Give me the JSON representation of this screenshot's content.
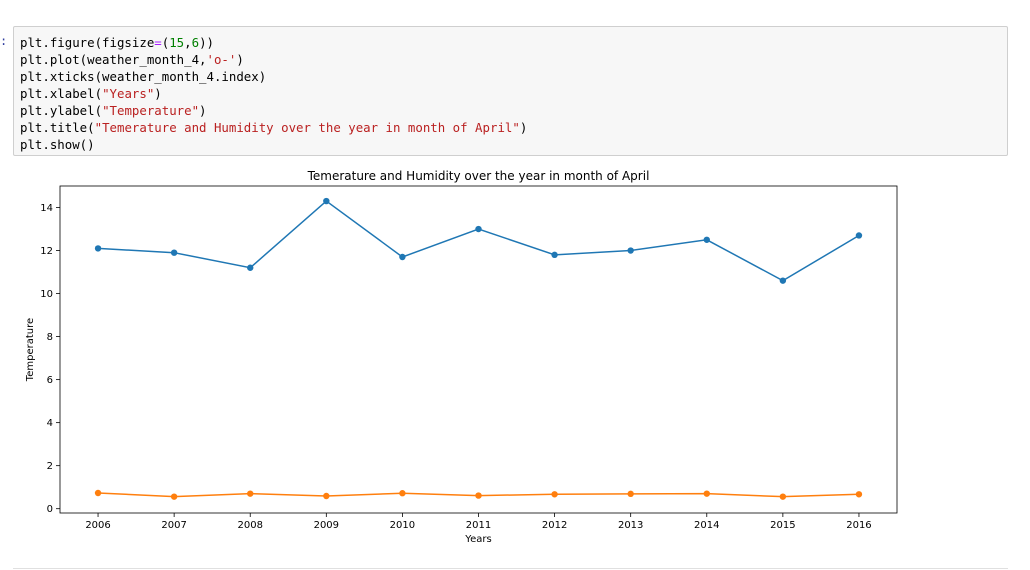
{
  "cell": {
    "prompt": ":",
    "lines": [
      [
        {
          "t": "plt.figure(figsize"
        },
        {
          "t": "=",
          "c": "op"
        },
        {
          "t": "("
        },
        {
          "t": "15",
          "c": "num"
        },
        {
          "t": ","
        },
        {
          "t": "6",
          "c": "num"
        },
        {
          "t": "))"
        }
      ],
      [
        {
          "t": "plt.plot(weather_month_4,"
        },
        {
          "t": "'o-'",
          "c": "str"
        },
        {
          "t": ")"
        }
      ],
      [
        {
          "t": "plt.xticks(weather_month_4.index)"
        }
      ],
      [
        {
          "t": "plt.xlabel("
        },
        {
          "t": "\"Years\"",
          "c": "str"
        },
        {
          "t": ")"
        }
      ],
      [
        {
          "t": "plt.ylabel("
        },
        {
          "t": "\"Temperature\"",
          "c": "str"
        },
        {
          "t": ")"
        }
      ],
      [
        {
          "t": "plt.title("
        },
        {
          "t": "\"Temerature and Humidity over the year in month of April\"",
          "c": "str"
        },
        {
          "t": ")"
        }
      ],
      [
        {
          "t": "plt.show()"
        }
      ]
    ]
  },
  "chart_data": {
    "type": "line",
    "title": "Temerature and Humidity over the year in month of April",
    "xlabel": "Years",
    "ylabel": "Temperature",
    "categories": [
      2006,
      2007,
      2008,
      2009,
      2010,
      2011,
      2012,
      2013,
      2014,
      2015,
      2016
    ],
    "x_ticks": [
      "2006",
      "2007",
      "2008",
      "2009",
      "2010",
      "2011",
      "2012",
      "2013",
      "2014",
      "2015",
      "2016"
    ],
    "y_ticks": [
      "0",
      "2",
      "4",
      "6",
      "8",
      "10",
      "12",
      "14"
    ],
    "ylim": [
      -0.2,
      15.0
    ],
    "xlim": [
      2005.5,
      2016.5
    ],
    "grid": false,
    "series": [
      {
        "name": "Temperature",
        "color": "#1f77b4",
        "values": [
          12.1,
          11.9,
          11.2,
          14.3,
          11.7,
          13.0,
          11.8,
          12.0,
          12.5,
          10.6,
          12.7
        ]
      },
      {
        "name": "Humidity",
        "color": "#ff7f0e",
        "values": [
          0.73,
          0.56,
          0.7,
          0.59,
          0.72,
          0.61,
          0.67,
          0.69,
          0.7,
          0.56,
          0.67
        ]
      }
    ]
  }
}
